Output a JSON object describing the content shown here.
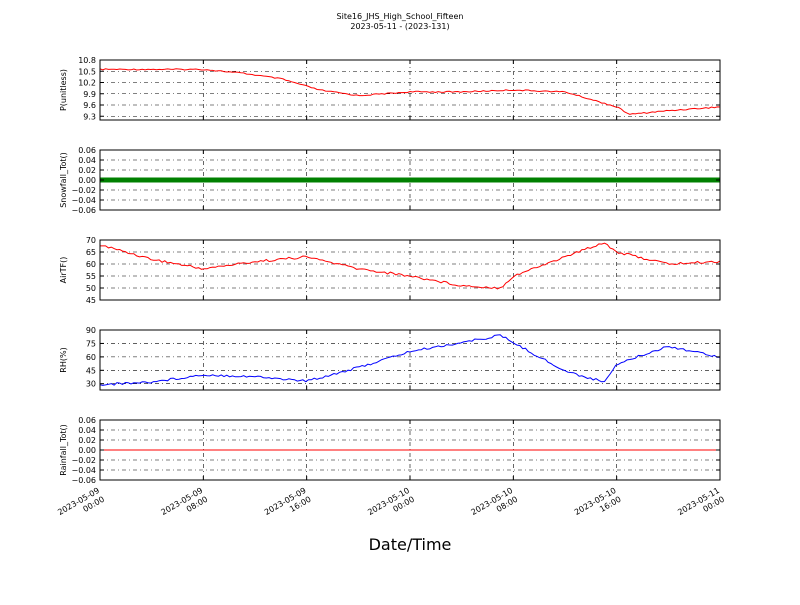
{
  "figure": {
    "title": "Site16_JHS_High_School_Fifteen",
    "subtitle": "2023-05-11 - (2023-131)",
    "xlabel": "Date/Time"
  },
  "chart_data": [
    {
      "type": "line",
      "ylabel": "P(unitless)",
      "ylim": [
        9.2,
        10.8
      ],
      "yticks": [
        "10.8",
        "10.5",
        "10.2",
        "9.9",
        "9.6",
        "9.3"
      ],
      "color": "#ff0000",
      "x": [
        "2023-05-09 00:00",
        "2023-05-09 04:00",
        "2023-05-09 08:00",
        "2023-05-09 11:00",
        "2023-05-09 14:00",
        "2023-05-09 17:00",
        "2023-05-09 20:00",
        "2023-05-10 00:00",
        "2023-05-10 04:00",
        "2023-05-10 08:00",
        "2023-05-10 12:00",
        "2023-05-10 15:00",
        "2023-05-10 16:00",
        "2023-05-10 17:00",
        "2023-05-10 20:00",
        "2023-05-11 00:00"
      ],
      "values": [
        10.55,
        10.55,
        10.55,
        10.45,
        10.3,
        10.0,
        9.85,
        9.95,
        9.95,
        10.0,
        9.95,
        9.65,
        9.55,
        9.35,
        9.45,
        9.55
      ]
    },
    {
      "type": "scatter",
      "ylabel": "Snowfall_Tot()",
      "ylim": [
        -0.06,
        0.06
      ],
      "yticks": [
        "0.06",
        "0.04",
        "0.02",
        "0.00",
        "−0.02",
        "−0.04",
        "−0.06"
      ],
      "color": "#008000",
      "x": [
        "2023-05-09 00:00",
        "2023-05-11 00:00"
      ],
      "values": [
        0.0,
        0.0
      ]
    },
    {
      "type": "line",
      "ylabel": "AirTF()",
      "ylim": [
        45,
        70
      ],
      "yticks": [
        "70",
        "65",
        "60",
        "55",
        "50",
        "45"
      ],
      "color": "#ff0000",
      "x": [
        "2023-05-09 00:00",
        "2023-05-09 04:00",
        "2023-05-09 08:00",
        "2023-05-09 12:00",
        "2023-05-09 16:00",
        "2023-05-09 20:00",
        "2023-05-10 00:00",
        "2023-05-10 04:00",
        "2023-05-10 07:00",
        "2023-05-10 08:00",
        "2023-05-10 12:00",
        "2023-05-10 15:00",
        "2023-05-10 16:00",
        "2023-05-10 20:00",
        "2023-05-11 00:00"
      ],
      "values": [
        68,
        62,
        58,
        61,
        63,
        58,
        55,
        51,
        50,
        55,
        63,
        69,
        65,
        60,
        61
      ]
    },
    {
      "type": "line",
      "ylabel": "RH(%)",
      "ylim": [
        23,
        90
      ],
      "yticks": [
        "90",
        "75",
        "60",
        "45",
        "30"
      ],
      "color": "#0000ff",
      "x": [
        "2023-05-09 00:00",
        "2023-05-09 04:00",
        "2023-05-09 08:00",
        "2023-05-09 12:00",
        "2023-05-09 16:00",
        "2023-05-09 20:00",
        "2023-05-10 00:00",
        "2023-05-10 04:00",
        "2023-05-10 07:00",
        "2023-05-10 08:00",
        "2023-05-10 12:00",
        "2023-05-10 15:00",
        "2023-05-10 16:00",
        "2023-05-10 20:00",
        "2023-05-11 00:00"
      ],
      "values": [
        29,
        32,
        40,
        38,
        33,
        48,
        66,
        76,
        84,
        76,
        44,
        32,
        52,
        72,
        60
      ]
    },
    {
      "type": "line",
      "ylabel": "Rainfall_Tot()",
      "ylim": [
        -0.06,
        0.06
      ],
      "yticks": [
        "0.06",
        "0.04",
        "0.02",
        "0.00",
        "−0.02",
        "−0.04",
        "−0.06"
      ],
      "color": "#ff0000",
      "x": [
        "2023-05-09 00:00",
        "2023-05-11 00:00"
      ],
      "values": [
        0.0,
        0.0
      ]
    }
  ],
  "xticks": [
    [
      "2023-05-09",
      "00:00"
    ],
    [
      "2023-05-09",
      "08:00"
    ],
    [
      "2023-05-09",
      "16:00"
    ],
    [
      "2023-05-10",
      "00:00"
    ],
    [
      "2023-05-10",
      "08:00"
    ],
    [
      "2023-05-10",
      "16:00"
    ],
    [
      "2023-05-11",
      "00:00"
    ]
  ]
}
